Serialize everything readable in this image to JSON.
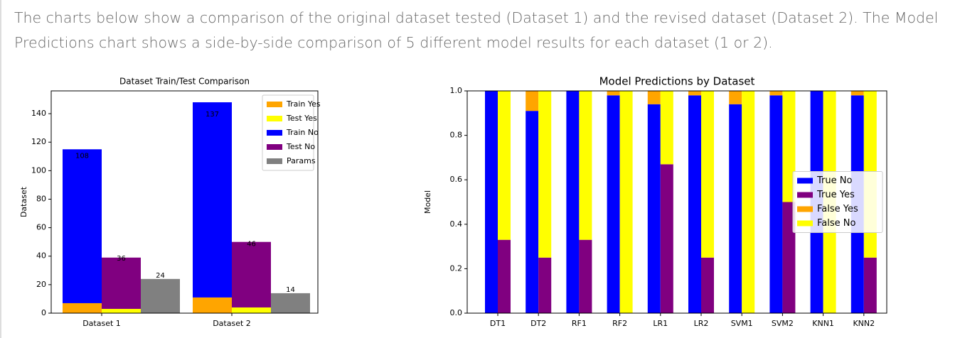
{
  "intro": "The charts below show a comparison of the original dataset tested (Dataset 1) and the revised dataset (Dataset 2). The Model Predictions chart shows a side-by-side comparison of 5 different model results for each dataset (1 or 2).",
  "chart_data": [
    {
      "type": "bar",
      "title": "Dataset Train/Test Comparison",
      "y_label": "Dataset",
      "categories": [
        "Dataset 1",
        "Dataset 2"
      ],
      "series": [
        {
          "name": "Train Yes",
          "color": "#ffa500",
          "slot": 0,
          "values": [
            7,
            11
          ]
        },
        {
          "name": "Test Yes",
          "color": "#ffff00",
          "slot": 1,
          "values": [
            3,
            4
          ]
        },
        {
          "name": "Train No",
          "color": "#0000ff",
          "slot": 0,
          "values": [
            108,
            137
          ]
        },
        {
          "name": "Test No",
          "color": "#800080",
          "slot": 1,
          "values": [
            36,
            46
          ]
        },
        {
          "name": "Params",
          "color": "#808080",
          "slot": 2,
          "values": [
            24,
            14
          ]
        }
      ],
      "ylim": [
        0,
        156
      ],
      "yticks": [
        0,
        20,
        40,
        60,
        80,
        100,
        120,
        140
      ],
      "data_labels": true,
      "legend": "upper right"
    },
    {
      "type": "bar",
      "title": "Model Predictions by Dataset",
      "y_label": "Model",
      "categories": [
        "DT1",
        "DT2",
        "RF1",
        "RF2",
        "LR1",
        "LR2",
        "SVM1",
        "SVM2",
        "KNN1",
        "KNN2"
      ],
      "series": [
        {
          "name": "True No",
          "color": "#0000ff",
          "slot": 0,
          "values": [
            1.0,
            0.91,
            1.0,
            0.98,
            0.94,
            0.98,
            0.94,
            0.98,
            1.0,
            0.98
          ]
        },
        {
          "name": "True Yes",
          "color": "#800080",
          "slot": 1,
          "values": [
            0.33,
            0.25,
            0.33,
            0,
            0.67,
            0.25,
            0,
            0.5,
            0,
            0.25
          ]
        },
        {
          "name": "False Yes",
          "color": "#ffa500",
          "slot": 0,
          "values": [
            0,
            0.09,
            0,
            0.02,
            0.06,
            0.02,
            0.06,
            0.02,
            0,
            0.02
          ]
        },
        {
          "name": "False No",
          "color": "#ffff00",
          "slot": 1,
          "values": [
            0.67,
            0.75,
            0.67,
            1.0,
            0.33,
            0.75,
            1.0,
            0.5,
            1.0,
            0.75
          ]
        }
      ],
      "ylim": [
        0,
        1
      ],
      "yticks": [
        {
          "value": 0,
          "label": "0.0"
        },
        0.2,
        0.4,
        0.6,
        0.8,
        {
          "value": 1,
          "label": "1.0"
        }
      ],
      "data_labels": false,
      "legend": "center right"
    }
  ]
}
